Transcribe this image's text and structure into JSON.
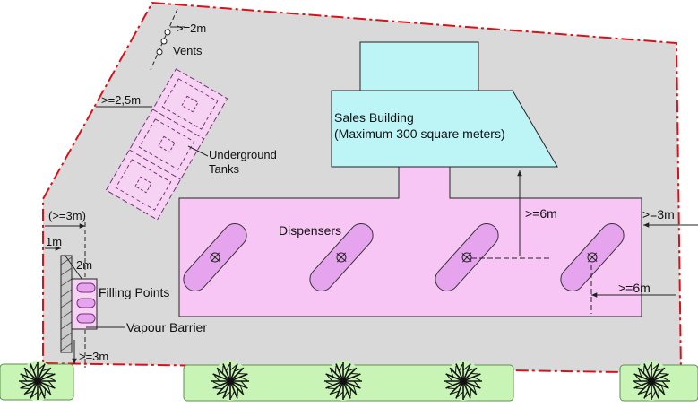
{
  "colors": {
    "site_fill": "#d9d9d9",
    "site_border": "#d8121b",
    "building_fill": "#bdf4f6",
    "canopy_fill": "#f8c6f4",
    "tank_fill": "#f6d2f3",
    "hedge_fill": "#c8f5b5",
    "line": "#222222"
  },
  "labels": {
    "vents_spacing": ">=2m",
    "vents": "Vents",
    "tank_offset": ">=2,5m",
    "tanks_line1": "Underground",
    "tanks_line2": "Tanks",
    "sales_line1": "Sales Building",
    "sales_line2": "(Maximum 300 square meters)",
    "dispensers": "Dispensers",
    "building_canopy_gap": ">=6m",
    "canopy_right_gap": ">=3m",
    "dispenser_gap": ">=6m",
    "wall_offset": "(>=3m)",
    "wall_1m": "1m",
    "wall_2m": "2m",
    "filling_points": "Filling Points",
    "vapour_barrier": "Vapour Barrier",
    "bottom_gap": ">=3m"
  }
}
